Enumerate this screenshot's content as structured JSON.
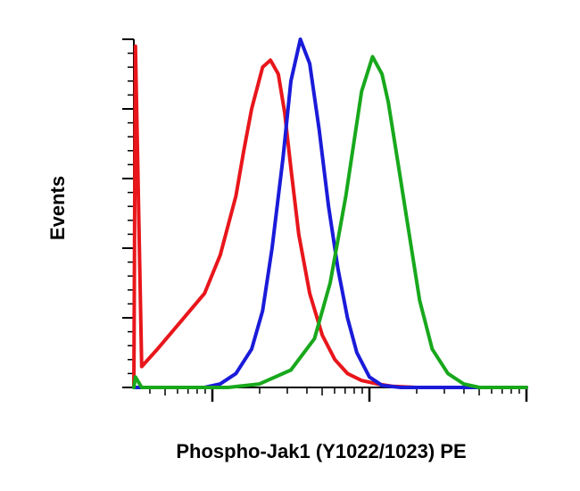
{
  "chart_data": {
    "type": "line",
    "title": "",
    "xlabel": "Phospho-Jak1 (Y1022/1023) PE",
    "ylabel": "Events",
    "x_scale": "log",
    "xlim": [
      0.5,
      3.0
    ],
    "ylim": [
      0,
      1.0
    ],
    "grid": false,
    "legend": "none",
    "series": [
      {
        "color": "#e8161b",
        "x": [
          0.5,
          0.51,
          0.55,
          0.65,
          0.8,
          0.95,
          1.05,
          1.15,
          1.2,
          1.25,
          1.32,
          1.37,
          1.42,
          1.46,
          1.5,
          1.55,
          1.62,
          1.7,
          1.78,
          1.86,
          1.95,
          2.05,
          2.15,
          2.3,
          2.5,
          2.7,
          3.0
        ],
        "y": [
          0.0,
          0.98,
          0.06,
          0.11,
          0.19,
          0.27,
          0.38,
          0.55,
          0.68,
          0.8,
          0.92,
          0.94,
          0.9,
          0.79,
          0.63,
          0.44,
          0.27,
          0.15,
          0.08,
          0.04,
          0.02,
          0.01,
          0.003,
          0.0,
          0.0,
          0.0,
          0.0
        ]
      },
      {
        "color": "#1a1bd9",
        "x": [
          0.5,
          0.75,
          0.95,
          1.05,
          1.15,
          1.25,
          1.32,
          1.38,
          1.45,
          1.5,
          1.56,
          1.62,
          1.68,
          1.74,
          1.8,
          1.86,
          1.92,
          2.0,
          2.08,
          2.2,
          2.5,
          3.0
        ],
        "y": [
          0.0,
          0.0,
          0.0,
          0.01,
          0.04,
          0.11,
          0.22,
          0.4,
          0.66,
          0.88,
          1.0,
          0.93,
          0.74,
          0.52,
          0.34,
          0.2,
          0.1,
          0.03,
          0.006,
          0.0,
          0.0,
          0.0
        ]
      },
      {
        "color": "#18a81c",
        "x": [
          0.5,
          0.51,
          0.55,
          0.8,
          1.1,
          1.3,
          1.5,
          1.65,
          1.75,
          1.85,
          1.95,
          2.02,
          2.08,
          2.12,
          2.18,
          2.25,
          2.32,
          2.4,
          2.5,
          2.6,
          2.7,
          2.8,
          3.0
        ],
        "y": [
          0.0,
          0.03,
          0.0,
          0.0,
          0.0,
          0.01,
          0.05,
          0.14,
          0.3,
          0.55,
          0.85,
          0.95,
          0.9,
          0.82,
          0.65,
          0.45,
          0.25,
          0.11,
          0.04,
          0.01,
          0.0,
          0.0,
          0.0
        ]
      }
    ]
  }
}
